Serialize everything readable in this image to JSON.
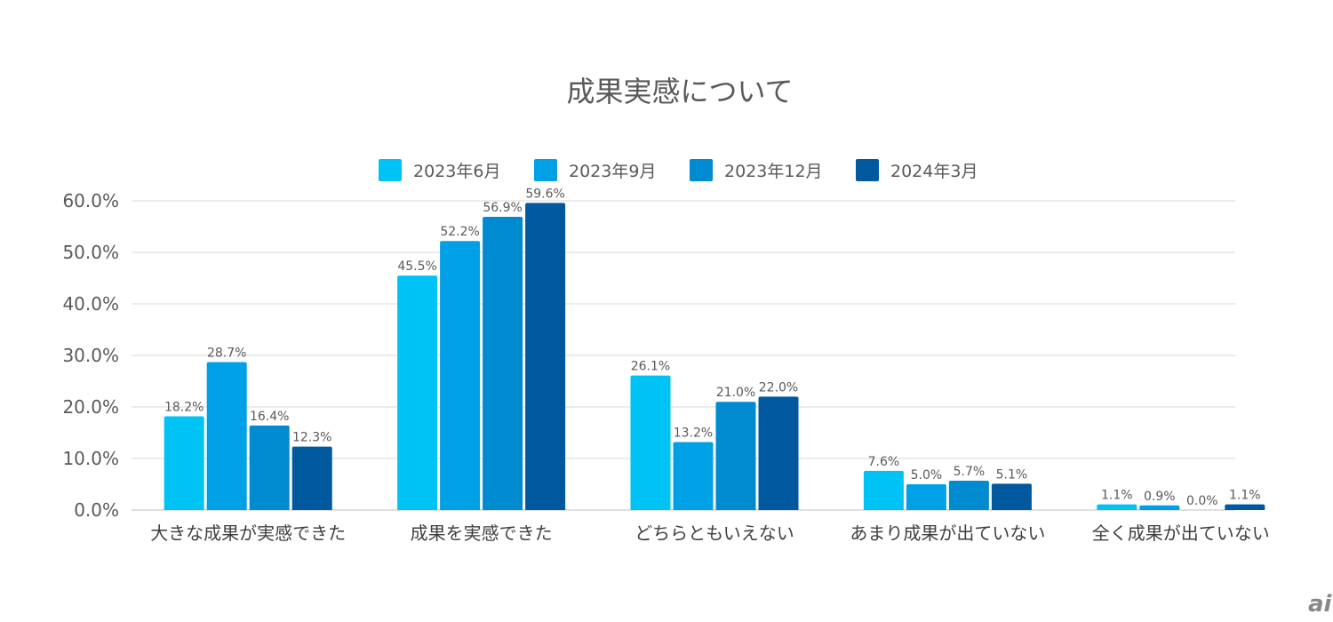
{
  "chart_data": {
    "type": "bar",
    "title": "成果実感について",
    "xlabel": "",
    "ylabel": "",
    "ylim": [
      0,
      60
    ],
    "yticks": [
      "0.0%",
      "10.0%",
      "20.0%",
      "30.0%",
      "40.0%",
      "50.0%",
      "60.0%"
    ],
    "grid": true,
    "legend_position": "top",
    "categories": [
      "大きな成果が実感できた",
      "成果を実感できた",
      "どちらともいえない",
      "あまり成果が出ていない",
      "全く成果が出ていない"
    ],
    "series": [
      {
        "name": "2023年6月",
        "color": "#00C3F5",
        "values": [
          18.2,
          45.5,
          26.1,
          7.6,
          1.1
        ]
      },
      {
        "name": "2023年9月",
        "color": "#00A0E6",
        "values": [
          28.7,
          52.2,
          13.2,
          5.0,
          0.9
        ]
      },
      {
        "name": "2023年12月",
        "color": "#008AD0",
        "values": [
          16.4,
          56.9,
          21.0,
          5.7,
          0.0
        ]
      },
      {
        "name": "2024年3月",
        "color": "#00589E",
        "values": [
          12.3,
          59.6,
          22.0,
          5.1,
          1.1
        ]
      }
    ]
  },
  "logo_text": "ai"
}
